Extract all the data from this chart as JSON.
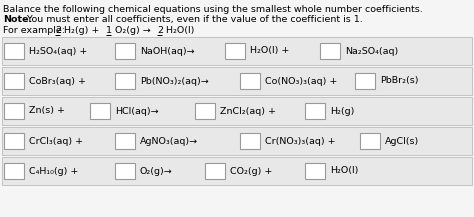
{
  "bg_color": "#f5f5f5",
  "row_bg_color": "#e8e8e8",
  "row_border_color": "#bbbbbb",
  "box_edge_color": "#999999",
  "box_fill_color": "#ffffff",
  "font_size": 6.8,
  "header_font_size": 6.8,
  "title1": "Balance the following chemical equations using the smallest whole number coefficients.",
  "note_bold": "Note:",
  "note_rest": " You must enter all coefficients, even if the value of the coefficient is 1.",
  "example_label": "For example: ",
  "example_parts": [
    {
      "text": "2",
      "underline": true
    },
    {
      "text": " H₂(g) + ",
      "underline": false
    },
    {
      "text": "1",
      "underline": true
    },
    {
      "text": " O₂(g) → ",
      "underline": false
    },
    {
      "text": "2",
      "underline": true
    },
    {
      "text": " H₂O(l)",
      "underline": false
    }
  ],
  "rows": [
    {
      "items": [
        {
          "kind": "box"
        },
        {
          "kind": "text",
          "t": "H₂SO₄(aq) +"
        },
        {
          "kind": "box"
        },
        {
          "kind": "text",
          "t": "NaOH(aq)→"
        },
        {
          "kind": "box"
        },
        {
          "kind": "text",
          "t": "H₂O(l) +"
        },
        {
          "kind": "box"
        },
        {
          "kind": "text",
          "t": "Na₂SO₄(aq)"
        }
      ]
    },
    {
      "items": [
        {
          "kind": "box"
        },
        {
          "kind": "text",
          "t": "CoBr₃(aq) +"
        },
        {
          "kind": "box"
        },
        {
          "kind": "text",
          "t": "Pb(NO₃)₂(aq)→"
        },
        {
          "kind": "box"
        },
        {
          "kind": "text",
          "t": "Co(NO₃)₃(aq) +"
        },
        {
          "kind": "box"
        },
        {
          "kind": "text",
          "t": "PbBr₂(s)"
        }
      ]
    },
    {
      "items": [
        {
          "kind": "box"
        },
        {
          "kind": "text",
          "t": "Zn(s) +"
        },
        {
          "kind": "box"
        },
        {
          "kind": "text",
          "t": "HCl(aq)→"
        },
        {
          "kind": "box"
        },
        {
          "kind": "text",
          "t": "ZnCl₂(aq) +"
        },
        {
          "kind": "box"
        },
        {
          "kind": "text",
          "t": "H₂(g)"
        }
      ]
    },
    {
      "items": [
        {
          "kind": "box"
        },
        {
          "kind": "text",
          "t": "CrCl₃(aq) +"
        },
        {
          "kind": "box"
        },
        {
          "kind": "text",
          "t": "AgNO₃(aq)→"
        },
        {
          "kind": "box"
        },
        {
          "kind": "text",
          "t": "Cr(NO₃)₃(aq) +"
        },
        {
          "kind": "box"
        },
        {
          "kind": "text",
          "t": "AgCl(s)"
        }
      ]
    },
    {
      "items": [
        {
          "kind": "box"
        },
        {
          "kind": "text",
          "t": "C₄H₁₀(g) +"
        },
        {
          "kind": "box"
        },
        {
          "kind": "text",
          "t": "O₂(g)→"
        },
        {
          "kind": "box"
        },
        {
          "kind": "text",
          "t": "CO₂(g) +"
        },
        {
          "kind": "box"
        },
        {
          "kind": "text",
          "t": "H₂O(l)"
        }
      ]
    }
  ],
  "row_x_layouts": [
    [
      4,
      29,
      115,
      140,
      225,
      250,
      320,
      345
    ],
    [
      4,
      29,
      115,
      140,
      240,
      265,
      355,
      380
    ],
    [
      4,
      29,
      90,
      115,
      195,
      220,
      305,
      330
    ],
    [
      4,
      29,
      115,
      140,
      240,
      265,
      360,
      385
    ],
    [
      4,
      29,
      115,
      140,
      205,
      230,
      305,
      330
    ]
  ]
}
